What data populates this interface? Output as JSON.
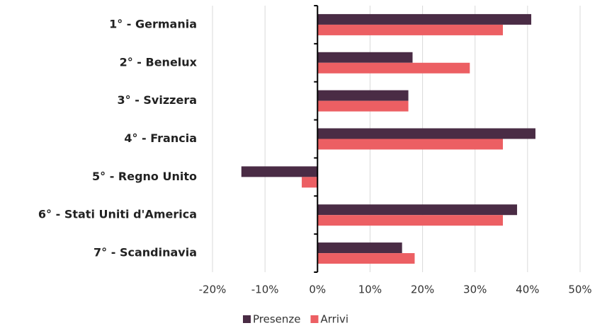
{
  "chart_data": {
    "type": "bar",
    "orientation": "horizontal",
    "categories": [
      "1° - Germania",
      "2° - Benelux",
      "3° - Svizzera",
      "4° - Francia",
      "5° - Regno Unito",
      "6° - Stati Uniti d'America",
      "7° - Scandinavia"
    ],
    "series": [
      {
        "name": "Presenze",
        "color": "#4a2c45",
        "values": [
          40.7,
          18.1,
          17.3,
          41.5,
          -14.5,
          38.0,
          16.1
        ]
      },
      {
        "name": "Arrivi",
        "color": "#ec5f63",
        "values": [
          35.3,
          29.0,
          17.3,
          35.3,
          -3.0,
          35.3,
          18.5
        ]
      }
    ],
    "xlim": [
      -20,
      50
    ],
    "xticks": [
      {
        "value": -20,
        "label": "-20%"
      },
      {
        "value": -10,
        "label": "-10%"
      },
      {
        "value": 0,
        "label": "0%"
      },
      {
        "value": 10,
        "label": "10%"
      },
      {
        "value": 20,
        "label": "20%"
      },
      {
        "value": 30,
        "label": "30%"
      },
      {
        "value": 40,
        "label": "40%"
      },
      {
        "value": 50,
        "label": "50%"
      }
    ],
    "grid": true,
    "legend": "bottom"
  }
}
